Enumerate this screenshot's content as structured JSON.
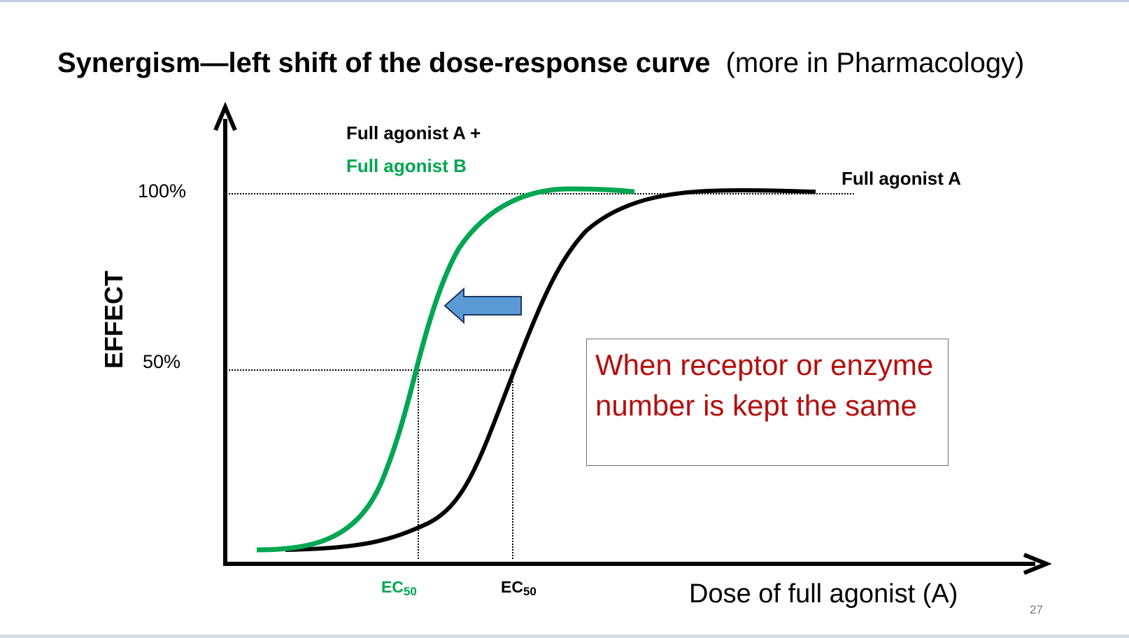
{
  "slide": {
    "title_main": "Synergism—left shift of the dose-response curve",
    "title_aside": "(more in Pharmacology)",
    "page_number": "27"
  },
  "diagram": {
    "y_axis_label": "EFFECT",
    "x_axis_label": "Dose of full agonist (A)",
    "tick_100": "100%",
    "tick_50": "50%",
    "label_combo_line1": "Full agonist A +",
    "label_combo_line2": "Full agonist B",
    "label_agonist_a": "Full agonist A",
    "ec50_label_base": "EC",
    "ec50_label_sub": "50",
    "arrow_icon": "left-arrow-icon",
    "note": "When receptor or enzyme number is kept the same",
    "colors": {
      "combo_curve": "#00a651",
      "agonist_a_curve": "#000000",
      "arrow_fill": "#5b9bd5",
      "arrow_stroke": "#1f3864",
      "note_text": "#b50f0f",
      "ec50_combo": "#00a651",
      "ec50_a": "#000000"
    }
  }
}
